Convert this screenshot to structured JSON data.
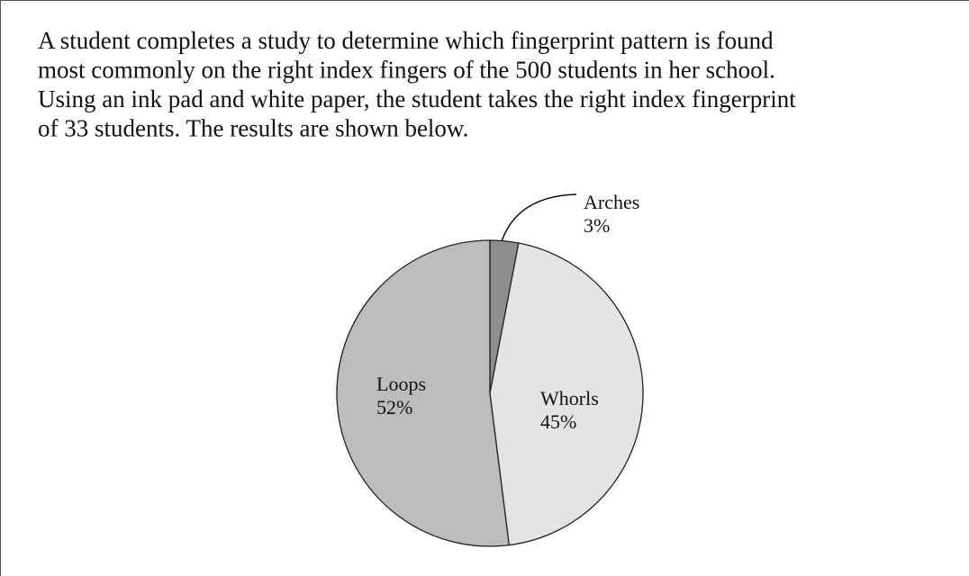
{
  "text": {
    "lines": [
      "A student completes a study to determine which fingerprint pattern is found",
      "most commonly on the right index fingers of the 500 students in her school.",
      "Using an ink pad and white paper, the student takes the right index fingerprint",
      "of 33 students.  The results are shown below."
    ]
  },
  "chart_data": {
    "type": "pie",
    "categories": [
      "Arches",
      "Whorls",
      "Loops"
    ],
    "values": [
      3,
      45,
      52
    ],
    "value_labels": [
      "3%",
      "45%",
      "52%"
    ],
    "colors": [
      "#8e8e8e",
      "#e4e4e4",
      "#bdbdbd"
    ]
  }
}
